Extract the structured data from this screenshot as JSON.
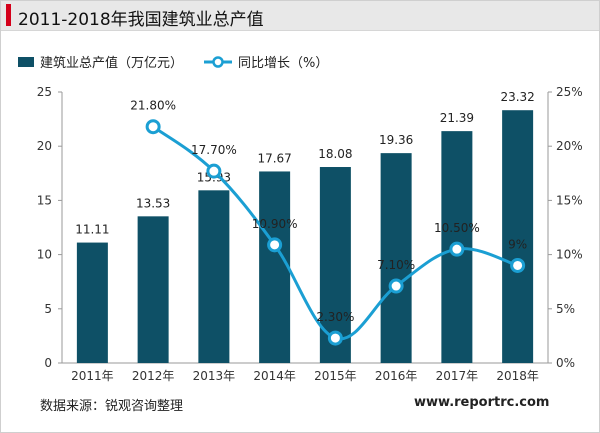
{
  "header": {
    "title": "2011-2018年我国建筑业总产值"
  },
  "legend": {
    "bar_label": "建筑业总产值（万亿元）",
    "line_label": "同比增长（%）"
  },
  "footer": {
    "source": "数据来源：锐观咨询整理",
    "watermark": "www.reportrc.com"
  },
  "colors": {
    "bar": "#0e5066",
    "line": "#1b9fd3",
    "title_accent": "#d4001a"
  },
  "chart_data": {
    "type": "bar",
    "categories": [
      "2011年",
      "2012年",
      "2013年",
      "2014年",
      "2015年",
      "2016年",
      "2017年",
      "2018年"
    ],
    "series": [
      {
        "name": "建筑业总产值（万亿元）",
        "type": "bar",
        "axis": "left",
        "values": [
          11.11,
          13.53,
          15.93,
          17.67,
          18.08,
          19.36,
          21.39,
          23.32
        ],
        "labels": [
          "11.11",
          "13.53",
          "15.93",
          "17.67",
          "18.08",
          "19.36",
          "21.39",
          "23.32"
        ]
      },
      {
        "name": "同比增长（%）",
        "type": "line",
        "axis": "right",
        "values": [
          null,
          21.8,
          17.7,
          10.9,
          2.3,
          7.1,
          10.5,
          9.0
        ],
        "labels": [
          "",
          "21.80%",
          "17.70%",
          "10.90%",
          "2.30%",
          "7.10%",
          "10.50%",
          "9%"
        ]
      }
    ],
    "y_left": {
      "min": 0,
      "max": 25,
      "ticks": [
        "0",
        "5",
        "10",
        "15",
        "20",
        "25"
      ]
    },
    "y_right": {
      "min": 0,
      "max": 25,
      "ticks": [
        "0%",
        "5%",
        "10%",
        "15%",
        "20%",
        "25%"
      ]
    },
    "grid": false,
    "legend_position": "top-left"
  }
}
